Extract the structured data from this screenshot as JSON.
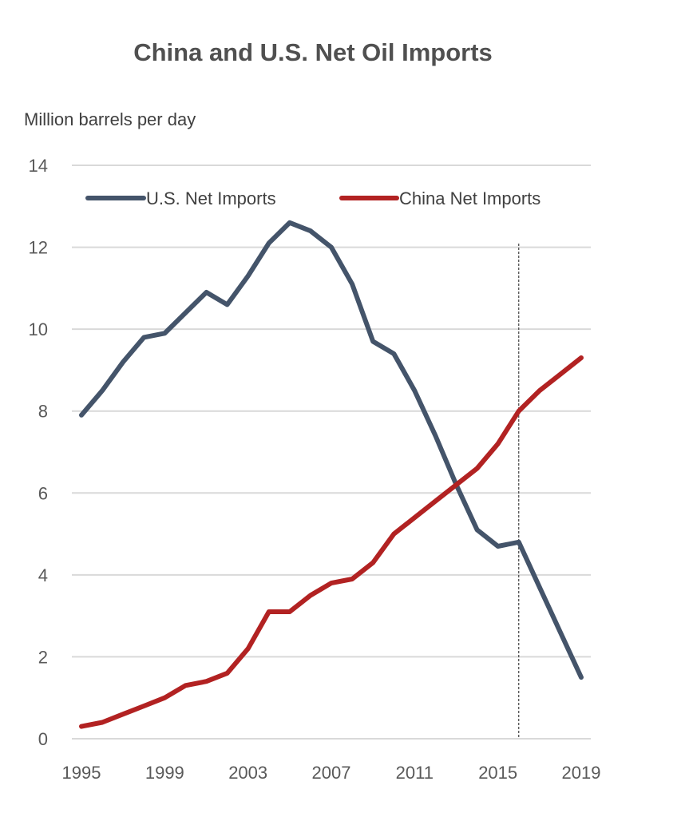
{
  "chart_data": {
    "type": "line",
    "title": "China and U.S. Net Oil Imports",
    "ylabel": "Million barrels per day",
    "xlabel": "",
    "ylim": [
      0,
      14
    ],
    "yticks": [
      0,
      2,
      4,
      6,
      8,
      10,
      12,
      14
    ],
    "xlim": [
      1995,
      2019
    ],
    "xticks": [
      1995,
      1999,
      2003,
      2007,
      2011,
      2015,
      2019
    ],
    "grid": "horizontal",
    "legend_position": "top",
    "reference_line": {
      "x": 2016,
      "style": "dashed"
    },
    "x": [
      1995,
      1996,
      1997,
      1998,
      1999,
      2000,
      2001,
      2002,
      2003,
      2004,
      2005,
      2006,
      2007,
      2008,
      2009,
      2010,
      2011,
      2012,
      2013,
      2014,
      2015,
      2016,
      2017,
      2018,
      2019
    ],
    "series": [
      {
        "name": "U.S. Net Imports",
        "color": "#44546a",
        "values": [
          7.9,
          8.5,
          9.2,
          9.8,
          9.9,
          10.4,
          10.9,
          10.6,
          11.3,
          12.1,
          12.6,
          12.4,
          12.0,
          11.1,
          9.7,
          9.4,
          8.5,
          7.4,
          6.2,
          5.1,
          4.7,
          4.8,
          3.7,
          2.6,
          1.5
        ]
      },
      {
        "name": "China Net Imports",
        "color": "#b22222",
        "values": [
          0.3,
          0.4,
          0.6,
          0.8,
          1.0,
          1.3,
          1.4,
          1.6,
          2.2,
          3.1,
          3.1,
          3.5,
          3.8,
          3.9,
          4.3,
          5.0,
          5.4,
          5.8,
          6.2,
          6.6,
          7.2,
          8.0,
          8.5,
          8.9,
          9.3
        ]
      }
    ]
  }
}
